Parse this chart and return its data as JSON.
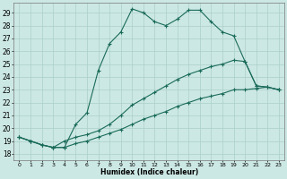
{
  "xlabel": "Humidex (Indice chaleur)",
  "bg_color": "#cce8e4",
  "grid_color": "#aacfca",
  "line_color": "#1a6b5a",
  "xlim": [
    -0.5,
    23.5
  ],
  "ylim": [
    17.5,
    29.8
  ],
  "xticks": [
    0,
    1,
    2,
    3,
    4,
    5,
    6,
    7,
    8,
    9,
    10,
    11,
    12,
    13,
    14,
    15,
    16,
    17,
    18,
    19,
    20,
    21,
    22,
    23
  ],
  "yticks": [
    18,
    19,
    20,
    21,
    22,
    23,
    24,
    25,
    26,
    27,
    28,
    29
  ],
  "line1_x": [
    0,
    1,
    2,
    3,
    4,
    5,
    6,
    7,
    8,
    9,
    10,
    11,
    12,
    13,
    14,
    15,
    16,
    17,
    18,
    19,
    20,
    21,
    22,
    23
  ],
  "line1_y": [
    19.3,
    19.0,
    18.7,
    18.5,
    18.5,
    20.3,
    21.2,
    24.5,
    26.6,
    27.5,
    29.3,
    29.0,
    28.3,
    28.0,
    28.5,
    29.2,
    29.2,
    28.3,
    27.5,
    27.2,
    25.2,
    23.3,
    23.2,
    23.0
  ],
  "line2_x": [
    0,
    1,
    2,
    3,
    4,
    5,
    6,
    7,
    8,
    9,
    10,
    11,
    12,
    13,
    14,
    15,
    16,
    17,
    18,
    19,
    20,
    21,
    22,
    23
  ],
  "line2_y": [
    19.3,
    19.0,
    18.7,
    18.5,
    19.0,
    19.3,
    19.5,
    19.8,
    20.3,
    21.0,
    21.8,
    22.3,
    22.8,
    23.3,
    23.8,
    24.2,
    24.5,
    24.8,
    25.0,
    25.3,
    25.2,
    23.3,
    23.2,
    23.0
  ],
  "line3_x": [
    0,
    1,
    2,
    3,
    4,
    5,
    6,
    7,
    8,
    9,
    10,
    11,
    12,
    13,
    14,
    15,
    16,
    17,
    18,
    19,
    20,
    21,
    22,
    23
  ],
  "line3_y": [
    19.3,
    19.0,
    18.7,
    18.5,
    18.5,
    18.8,
    19.0,
    19.3,
    19.6,
    19.9,
    20.3,
    20.7,
    21.0,
    21.3,
    21.7,
    22.0,
    22.3,
    22.5,
    22.7,
    23.0,
    23.0,
    23.1,
    23.2,
    23.0
  ]
}
